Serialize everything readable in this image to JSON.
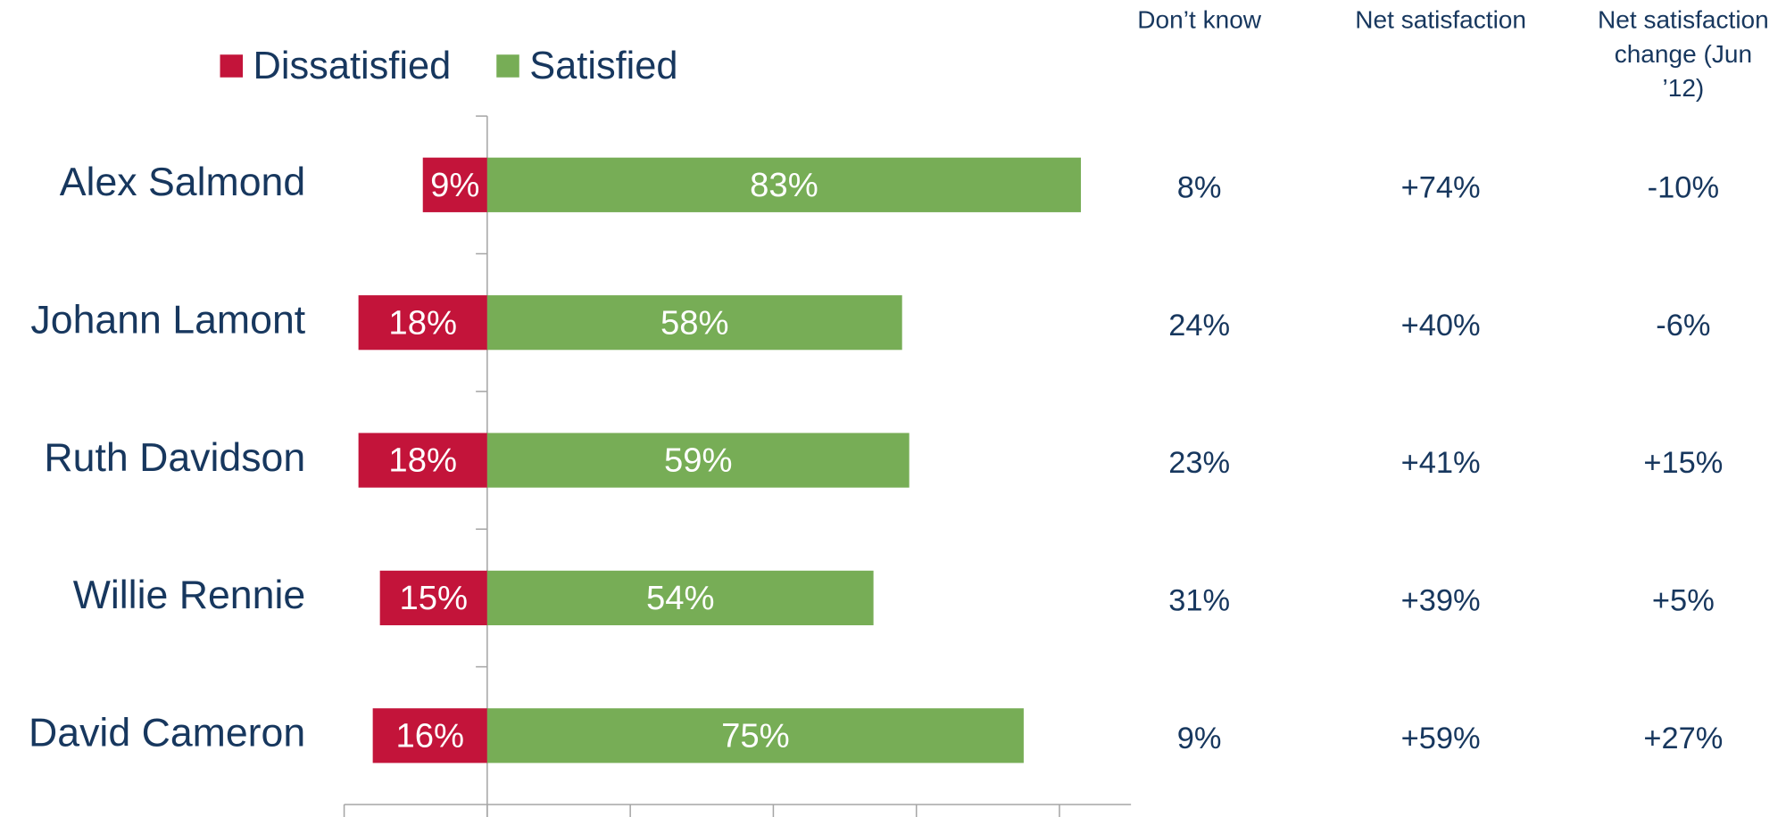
{
  "chart_data": {
    "type": "bar",
    "orientation": "horizontal",
    "stacked": true,
    "categories": [
      "Alex Salmond",
      "Johann Lamont",
      "Ruth Davidson",
      "Willie Rennie",
      "David Cameron"
    ],
    "series": [
      {
        "name": "Dissatisfied",
        "color": "#c3143a",
        "values": [
          -9,
          -18,
          -18,
          -15,
          -16
        ],
        "value_labels": [
          "9%",
          "18%",
          "18%",
          "15%",
          "16%"
        ]
      },
      {
        "name": "Satisfied",
        "color": "#77ad56",
        "values": [
          83,
          58,
          59,
          54,
          75
        ],
        "value_labels": [
          "83%",
          "58%",
          "59%",
          "54%",
          "75%"
        ]
      }
    ],
    "xlim": [
      -20,
      90
    ],
    "xticks": [
      -20,
      0,
      20,
      40,
      60,
      80
    ],
    "legend": "top"
  },
  "table": {
    "columns": [
      [
        "Don’t know"
      ],
      [
        "Net satisfaction"
      ],
      [
        "Net satisfaction",
        "change (Jun",
        "’12)"
      ]
    ],
    "rows": [
      [
        "8%",
        "+74%",
        "-10%"
      ],
      [
        "24%",
        "+40%",
        "-6%"
      ],
      [
        "23%",
        "+41%",
        "+15%"
      ],
      [
        "31%",
        "+39%",
        "+5%"
      ],
      [
        "9%",
        "+59%",
        "+27%"
      ]
    ]
  }
}
